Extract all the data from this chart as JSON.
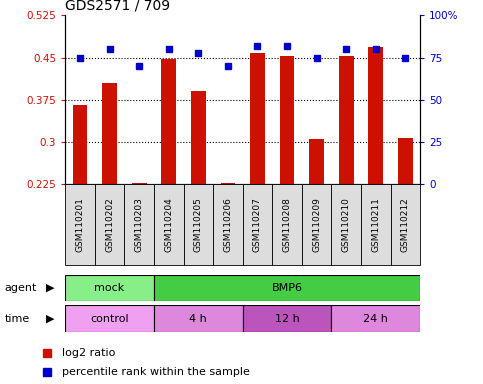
{
  "title": "GDS2571 / 709",
  "samples": [
    "GSM110201",
    "GSM110202",
    "GSM110203",
    "GSM110204",
    "GSM110205",
    "GSM110206",
    "GSM110207",
    "GSM110208",
    "GSM110209",
    "GSM110210",
    "GSM110211",
    "GSM110212"
  ],
  "log2_ratio": [
    0.365,
    0.405,
    0.228,
    0.447,
    0.39,
    0.228,
    0.458,
    0.452,
    0.305,
    0.452,
    0.468,
    0.308
  ],
  "percentile": [
    75,
    80,
    70,
    80,
    78,
    70,
    82,
    82,
    75,
    80,
    80,
    75
  ],
  "bar_bottom": 0.225,
  "ylim_left": [
    0.225,
    0.525
  ],
  "ylim_right": [
    0,
    100
  ],
  "yticks_left": [
    0.225,
    0.3,
    0.375,
    0.45,
    0.525
  ],
  "yticks_right": [
    0,
    25,
    50,
    75,
    100
  ],
  "ytick_labels_left": [
    "0.225",
    "0.3",
    "0.375",
    "0.45",
    "0.525"
  ],
  "ytick_labels_right": [
    "0",
    "25",
    "50",
    "75",
    "100%"
  ],
  "hlines": [
    0.3,
    0.375,
    0.45
  ],
  "bar_color": "#cc1100",
  "dot_color": "#0000cc",
  "agent_groups": [
    {
      "label": "mock",
      "start": 0,
      "end": 3,
      "color": "#88ee88"
    },
    {
      "label": "BMP6",
      "start": 3,
      "end": 12,
      "color": "#44cc44"
    }
  ],
  "time_groups": [
    {
      "label": "control",
      "start": 0,
      "end": 3,
      "color": "#f0a0f0"
    },
    {
      "label": "4 h",
      "start": 3,
      "end": 6,
      "color": "#dd88dd"
    },
    {
      "label": "12 h",
      "start": 6,
      "end": 9,
      "color": "#bb55bb"
    },
    {
      "label": "24 h",
      "start": 9,
      "end": 12,
      "color": "#dd88dd"
    }
  ],
  "legend_red_label": "log2 ratio",
  "legend_blue_label": "percentile rank within the sample",
  "bar_color_hex": "#cc1100",
  "dot_color_hex": "#0000cc",
  "title_fontsize": 10,
  "tick_fontsize": 7.5,
  "sample_fontsize": 6.5,
  "row_fontsize": 8,
  "legend_fontsize": 8
}
